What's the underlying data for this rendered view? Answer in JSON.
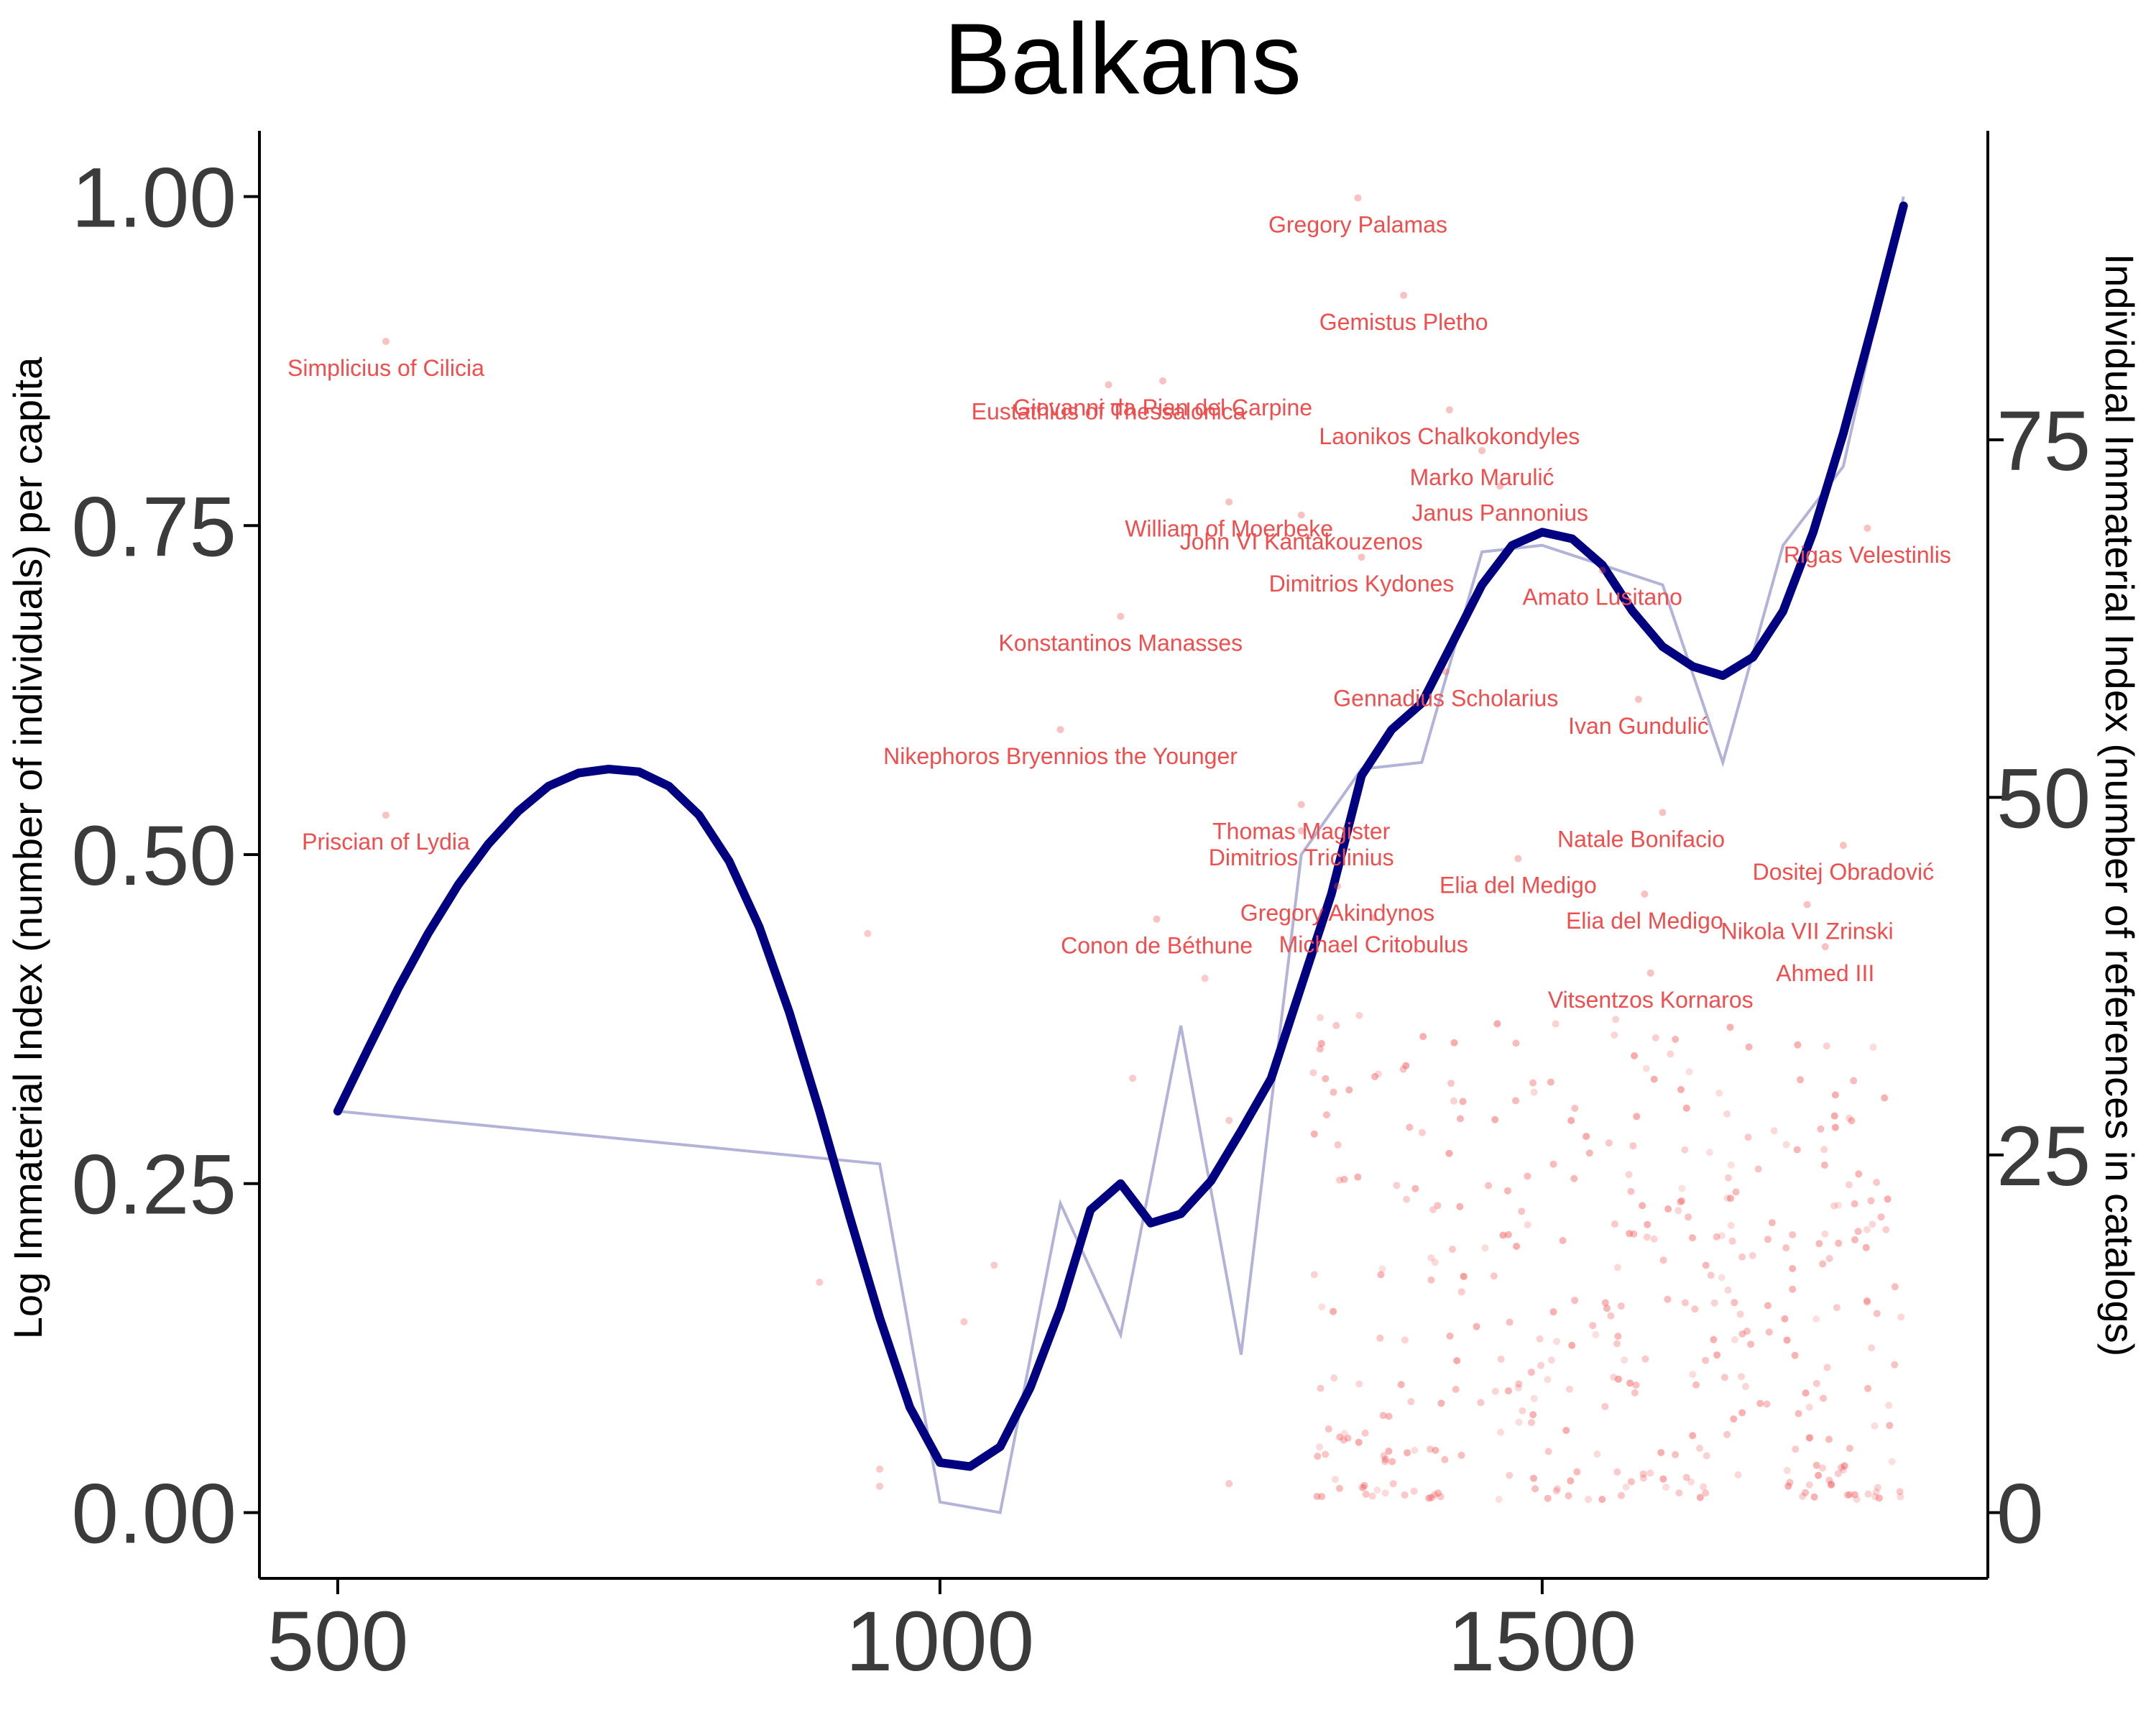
{
  "chart_data": {
    "type": "line",
    "title": "Balkans",
    "xlabel": "",
    "ylabel": "Log Immaterial Index (number of individuals) per capita",
    "y2label": "Individual Immaterial Index (number of references in catalogs)",
    "xlim": [
      435,
      1870
    ],
    "ylim": [
      -0.05,
      1.05
    ],
    "y2lim": [
      -4.6,
      96.6
    ],
    "xticks": [
      "500",
      "1000",
      "1500"
    ],
    "xtick_values": [
      500,
      1000,
      1500
    ],
    "yticks": [
      "0.00",
      "0.25",
      "0.50",
      "0.75",
      "1.00"
    ],
    "ytick_values": [
      0,
      0.25,
      0.5,
      0.75,
      1.0
    ],
    "y2ticks": [
      "0",
      "25",
      "50",
      "75"
    ],
    "y2tick_values": [
      0,
      25,
      50,
      75
    ],
    "grid": false,
    "colors": {
      "smooth": "#000080",
      "raw": "#b3b3d9",
      "points": "#f14d4d"
    },
    "series": [
      {
        "values_role": "smoothed",
        "x": [
          500,
          525,
          550,
          575,
          600,
          625,
          650,
          675,
          700,
          725,
          750,
          775,
          800,
          825,
          850,
          875,
          900,
          925,
          950,
          975,
          1000,
          1025,
          1050,
          1075,
          1100,
          1125,
          1150,
          1175,
          1200,
          1225,
          1250,
          1275,
          1300,
          1325,
          1350,
          1375,
          1400,
          1425,
          1450,
          1475,
          1500,
          1525,
          1550,
          1575,
          1600,
          1625,
          1650,
          1675,
          1700,
          1725,
          1750,
          1775,
          1800
        ],
        "values": [
          0.305,
          0.352,
          0.398,
          0.44,
          0.477,
          0.508,
          0.533,
          0.552,
          0.562,
          0.565,
          0.563,
          0.552,
          0.53,
          0.495,
          0.445,
          0.38,
          0.305,
          0.225,
          0.148,
          0.08,
          0.038,
          0.035,
          0.05,
          0.095,
          0.155,
          0.23,
          0.25,
          0.22,
          0.227,
          0.252,
          0.29,
          0.33,
          0.4,
          0.47,
          0.56,
          0.595,
          0.615,
          0.66,
          0.705,
          0.735,
          0.745,
          0.74,
          0.72,
          0.685,
          0.658,
          0.643,
          0.636,
          0.65,
          0.685,
          0.745,
          0.82,
          0.905,
          0.993
        ]
      },
      {
        "values_role": "raw",
        "x": [
          500,
          950,
          1000,
          1050,
          1100,
          1150,
          1200,
          1250,
          1300,
          1350,
          1400,
          1450,
          1500,
          1550,
          1600,
          1650,
          1700,
          1750,
          1800
        ],
        "values": [
          0.305,
          0.265,
          0.008,
          0.0,
          0.235,
          0.135,
          0.37,
          0.12,
          0.5,
          0.565,
          0.57,
          0.73,
          0.735,
          0.72,
          0.705,
          0.57,
          0.735,
          0.795,
          1.0
        ]
      }
    ],
    "annotations": [
      {
        "label": "Gregory Palamas",
        "x": 1347,
        "y": 0.999,
        "dx": 0
      },
      {
        "label": "Simplicius of Cilicia",
        "x": 540,
        "y": 0.89,
        "dx": 0
      },
      {
        "label": "Gemistus Pletho",
        "x": 1385,
        "y": 0.925,
        "dx": 0
      },
      {
        "label": "Giovanni da Pian del Carpine",
        "x": 1185,
        "y": 0.86,
        "dx": 0
      },
      {
        "label": "Eustathius of Thessalonica",
        "x": 1140,
        "y": 0.857,
        "dx": 0
      },
      {
        "label": "Laonikos Chalkokondyles",
        "x": 1423,
        "y": 0.838,
        "dx": 0
      },
      {
        "label": "Marko Marulić",
        "x": 1450,
        "y": 0.807,
        "dx": 0
      },
      {
        "label": "William of Moerbeke",
        "x": 1240,
        "y": 0.768,
        "dx": 0
      },
      {
        "label": "Janus Pannonius",
        "x": 1465,
        "y": 0.78,
        "dx": 0
      },
      {
        "label": "Rigas Velestinlis",
        "x": 1770,
        "y": 0.748,
        "dx": 0
      },
      {
        "label": "John VI Kantakouzenos",
        "x": 1300,
        "y": 0.758,
        "dx": 0
      },
      {
        "label": "Dimitrios Kydones",
        "x": 1350,
        "y": 0.726,
        "dx": 0
      },
      {
        "label": "Amato Lusitano",
        "x": 1550,
        "y": 0.716,
        "dx": 0
      },
      {
        "label": "Konstantinos Manasses",
        "x": 1150,
        "y": 0.681,
        "dx": 0
      },
      {
        "label": "Gennadius Scholarius",
        "x": 1420,
        "y": 0.639,
        "dx": 0
      },
      {
        "label": "Ivan Gundulić",
        "x": 1580,
        "y": 0.618,
        "dx": 0
      },
      {
        "label": "Nikephoros Bryennios the Younger",
        "x": 1100,
        "y": 0.595,
        "dx": 0
      },
      {
        "label": "Thomas Magister",
        "x": 1300,
        "y": 0.538,
        "dx": 0
      },
      {
        "label": "Natale Bonifacio",
        "x": 1600,
        "y": 0.532,
        "dx": -30
      },
      {
        "label": "Dimitrios Triclinius",
        "x": 1300,
        "y": 0.518,
        "dx": 0
      },
      {
        "label": "Elia del Medigo",
        "x": 1480,
        "y": 0.497,
        "dx": 0
      },
      {
        "label": "Dositej Obradović",
        "x": 1750,
        "y": 0.507,
        "dx": 0
      },
      {
        "label": "Priscian of Lydia",
        "x": 540,
        "y": 0.53,
        "dx": 0
      },
      {
        "label": "Elia del Medigo",
        "x": 1585,
        "y": 0.47,
        "dx": 0
      },
      {
        "label": "Gregory Akindynos",
        "x": 1330,
        "y": 0.476,
        "dx": 0
      },
      {
        "label": "Nikola VII Zrinski",
        "x": 1720,
        "y": 0.462,
        "dx": 0
      },
      {
        "label": "Michael Critobulus",
        "x": 1360,
        "y": 0.452,
        "dx": 0
      },
      {
        "label": "Conon de Béthune",
        "x": 1180,
        "y": 0.451,
        "dx": 0
      },
      {
        "label": "Vitsentzos Kornaros",
        "x": 1590,
        "y": 0.41,
        "dx": 0
      },
      {
        "label": "Ahmed III",
        "x": 1735,
        "y": 0.43,
        "dx": 0
      }
    ]
  }
}
